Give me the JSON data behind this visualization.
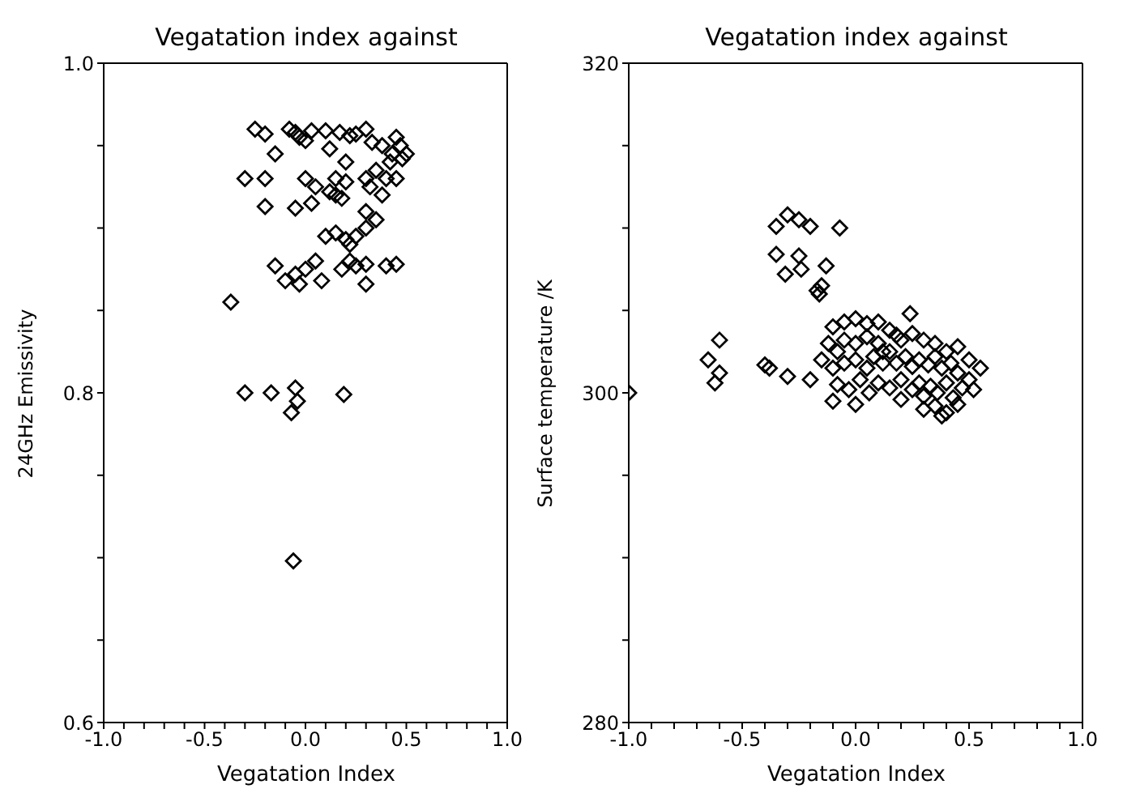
{
  "chart_data": [
    {
      "type": "scatter",
      "title": "Vegatation index against",
      "xlabel": "Vegatation Index",
      "ylabel": "24GHz Emissivity",
      "color": "#000000",
      "marker": "diamond",
      "xlim": [
        -1,
        1
      ],
      "ylim": [
        0.6,
        1.0
      ],
      "xticks": [
        {
          "value": -1,
          "label": "-1.0"
        },
        {
          "value": -0.9,
          "label": null
        },
        {
          "value": -0.8,
          "label": null
        },
        {
          "value": -0.7,
          "label": null
        },
        {
          "value": -0.6,
          "label": null
        },
        {
          "value": -0.5,
          "label": "-0.5"
        },
        {
          "value": -0.4,
          "label": null
        },
        {
          "value": -0.3,
          "label": null
        },
        {
          "value": -0.2,
          "label": null
        },
        {
          "value": -0.1,
          "label": null
        },
        {
          "value": 0,
          "label": "0.0"
        },
        {
          "value": 0.1,
          "label": null
        },
        {
          "value": 0.2,
          "label": null
        },
        {
          "value": 0.3,
          "label": null
        },
        {
          "value": 0.4,
          "label": null
        },
        {
          "value": 0.5,
          "label": "0.5"
        },
        {
          "value": 0.6,
          "label": null
        },
        {
          "value": 0.7,
          "label": null
        },
        {
          "value": 0.8,
          "label": null
        },
        {
          "value": 0.9,
          "label": null
        },
        {
          "value": 1,
          "label": "1.0"
        }
      ],
      "yticks": [
        0.6,
        {
          "value": 0.65,
          "label": null
        },
        {
          "value": 0.7,
          "label": null
        },
        {
          "value": 0.75,
          "label": null
        },
        0.8,
        {
          "value": 0.85,
          "label": null
        },
        {
          "value": 0.9,
          "label": null
        },
        {
          "value": 0.95,
          "label": null
        },
        {
          "value": 1.0,
          "label": "1.0"
        }
      ],
      "x": [
        -0.25,
        -0.2,
        -0.08,
        -0.05,
        -0.03,
        0.0,
        0.03,
        0.1,
        0.17,
        0.22,
        0.25,
        0.3,
        0.33,
        0.38,
        0.45,
        0.47,
        0.43,
        0.48,
        0.42,
        0.5,
        -0.15,
        0.12,
        0.2,
        -0.3,
        -0.2,
        0.0,
        0.05,
        0.12,
        0.15,
        0.2,
        0.3,
        0.32,
        0.4,
        0.45,
        0.35,
        0.38,
        -0.2,
        -0.05,
        0.03,
        0.15,
        0.18,
        0.3,
        0.35,
        0.1,
        0.15,
        0.2,
        0.22,
        0.25,
        0.3,
        0.22,
        0.18,
        -0.15,
        -0.05,
        0.0,
        0.05,
        0.25,
        0.3,
        0.4,
        0.45,
        -0.1,
        -0.03,
        0.08,
        0.3,
        -0.37,
        -0.3,
        -0.17,
        -0.05,
        -0.04,
        -0.07,
        0.19,
        -0.06
      ],
      "values": [
        0.96,
        0.957,
        0.96,
        0.958,
        0.955,
        0.953,
        0.959,
        0.959,
        0.958,
        0.956,
        0.957,
        0.96,
        0.952,
        0.95,
        0.955,
        0.95,
        0.945,
        0.942,
        0.94,
        0.945,
        0.945,
        0.948,
        0.94,
        0.93,
        0.93,
        0.93,
        0.925,
        0.922,
        0.93,
        0.928,
        0.93,
        0.925,
        0.93,
        0.93,
        0.935,
        0.92,
        0.913,
        0.912,
        0.915,
        0.92,
        0.918,
        0.91,
        0.905,
        0.895,
        0.897,
        0.893,
        0.89,
        0.895,
        0.9,
        0.88,
        0.875,
        0.877,
        0.872,
        0.875,
        0.88,
        0.877,
        0.878,
        0.877,
        0.878,
        0.868,
        0.866,
        0.868,
        0.866,
        0.855,
        0.8,
        0.8,
        0.803,
        0.795,
        0.788,
        0.799,
        0.698
      ]
    },
    {
      "type": "scatter",
      "title": "Vegatation index against",
      "xlabel": "Vegatation Index",
      "ylabel": "Surface temperature /K",
      "color": "#000000",
      "marker": "diamond",
      "xlim": [
        -1,
        1
      ],
      "ylim": [
        280,
        320
      ],
      "xticks": [
        {
          "value": -1,
          "label": "-1.0"
        },
        {
          "value": -0.9,
          "label": null
        },
        {
          "value": -0.8,
          "label": null
        },
        {
          "value": -0.7,
          "label": null
        },
        {
          "value": -0.6,
          "label": null
        },
        {
          "value": -0.5,
          "label": "-0.5"
        },
        {
          "value": -0.4,
          "label": null
        },
        {
          "value": -0.3,
          "label": null
        },
        {
          "value": -0.2,
          "label": null
        },
        {
          "value": -0.1,
          "label": null
        },
        {
          "value": 0,
          "label": "0.0"
        },
        {
          "value": 0.1,
          "label": null
        },
        {
          "value": 0.2,
          "label": null
        },
        {
          "value": 0.3,
          "label": null
        },
        {
          "value": 0.4,
          "label": null
        },
        {
          "value": 0.5,
          "label": "0.5"
        },
        {
          "value": 0.6,
          "label": null
        },
        {
          "value": 0.7,
          "label": null
        },
        {
          "value": 0.8,
          "label": null
        },
        {
          "value": 0.9,
          "label": null
        },
        {
          "value": 1,
          "label": "1.0"
        }
      ],
      "yticks": [
        280,
        {
          "value": 285,
          "label": null
        },
        {
          "value": 290,
          "label": null
        },
        {
          "value": 295,
          "label": null
        },
        300,
        {
          "value": 305,
          "label": null
        },
        {
          "value": 310,
          "label": null
        },
        {
          "value": 315,
          "label": null
        },
        320
      ],
      "x": [
        -1.0,
        -0.65,
        -0.6,
        -0.6,
        -0.62,
        -0.4,
        -0.38,
        -0.3,
        -0.2,
        -0.35,
        -0.3,
        -0.25,
        -0.2,
        -0.07,
        -0.35,
        -0.25,
        -0.31,
        -0.24,
        -0.13,
        -0.15,
        -0.17,
        -0.16,
        0.24,
        -0.1,
        -0.05,
        0.0,
        0.05,
        0.1,
        0.15,
        -0.12,
        -0.08,
        -0.05,
        0.0,
        0.05,
        0.1,
        0.12,
        0.18,
        0.2,
        0.25,
        0.3,
        0.35,
        0.4,
        0.45,
        -0.15,
        -0.1,
        -0.05,
        0.0,
        0.05,
        0.08,
        0.12,
        0.15,
        0.18,
        0.22,
        0.25,
        0.28,
        0.32,
        0.35,
        0.38,
        0.42,
        0.45,
        0.5,
        0.55,
        -0.08,
        -0.03,
        0.02,
        0.06,
        0.1,
        0.15,
        0.2,
        0.25,
        0.28,
        0.3,
        0.33,
        0.36,
        0.4,
        0.43,
        0.47,
        0.5,
        0.52,
        0.35,
        0.4,
        0.45,
        0.38,
        0.3,
        -0.1,
        0.0,
        0.2
      ],
      "values": [
        300,
        302,
        303.2,
        301.2,
        300.6,
        301.7,
        301.5,
        301,
        300.8,
        310.1,
        310.8,
        310.5,
        310.1,
        310,
        308.4,
        308.3,
        307.2,
        307.5,
        307.7,
        306.5,
        306.2,
        306,
        304.8,
        304,
        304.3,
        304.5,
        304.2,
        304.3,
        303.8,
        303,
        302.5,
        303.2,
        303,
        303.4,
        303,
        302.5,
        303.5,
        303.2,
        303.6,
        303.2,
        303,
        302.5,
        302.8,
        302,
        301.5,
        301.8,
        302,
        301.5,
        302.2,
        301.8,
        302.5,
        301.8,
        302.2,
        301.6,
        302,
        301.7,
        302.2,
        301.5,
        301.8,
        301.2,
        302,
        301.5,
        300.5,
        300.2,
        300.8,
        300,
        300.6,
        300.3,
        300.8,
        300.2,
        300.6,
        299.8,
        300.4,
        300,
        300.6,
        299.7,
        300.3,
        300.8,
        300.2,
        299.2,
        298.8,
        299.3,
        298.6,
        299,
        299.5,
        299.3,
        299.6
      ]
    }
  ]
}
